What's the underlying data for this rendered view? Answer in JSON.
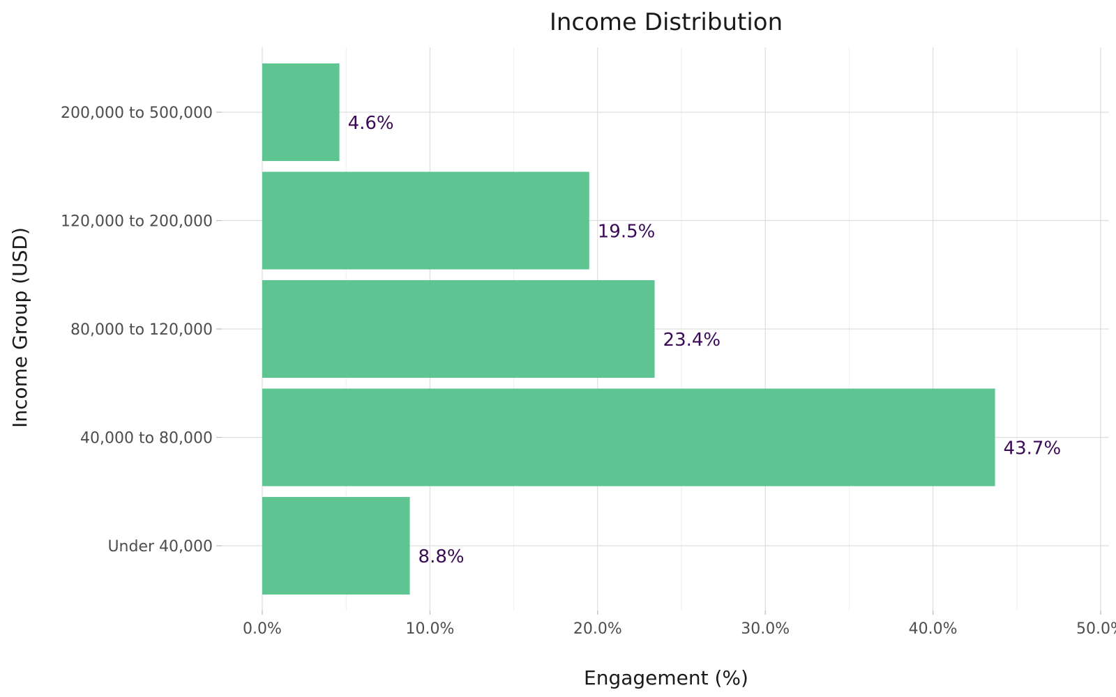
{
  "chart_data": {
    "type": "bar",
    "orientation": "horizontal",
    "title": "Income Distribution",
    "xlabel": "Engagement (%)",
    "ylabel": "Income Group (USD)",
    "categories": [
      "Under 40,000",
      "40,000 to 80,000",
      "80,000 to 120,000",
      "120,000 to 200,000",
      "200,000 to 500,000"
    ],
    "values": [
      8.8,
      43.7,
      23.4,
      19.5,
      4.6
    ],
    "data_labels": [
      "8.8%",
      "43.7%",
      "23.4%",
      "19.5%",
      "4.6%"
    ],
    "xlim": [
      0,
      50
    ],
    "x_ticks": [
      0,
      10,
      20,
      30,
      40,
      50
    ],
    "x_tick_labels": [
      "0.0%",
      "10.0%",
      "20.0%",
      "30.0%",
      "40.0%",
      "50.0%"
    ],
    "grid": true,
    "legend": "none",
    "colors": {
      "bar": "#4dbf86",
      "data_label": "#3b0a57",
      "grid_major": "#dddddd",
      "grid_minor": "#eeeeee",
      "tick_text": "#4d4d4d",
      "title_text": "#1a1a1a"
    }
  }
}
